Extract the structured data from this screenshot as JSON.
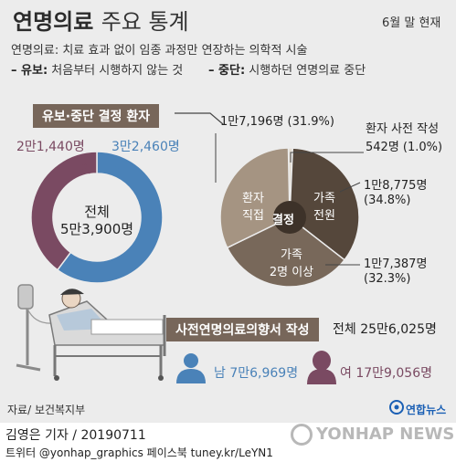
{
  "title_main": "연명의료",
  "title_sub": "주요 통계",
  "date_note": "6월 말 현재",
  "definition": {
    "line1": "연명의료: 치료 효과 없이 임종 과정만 연장하는 의학적 시술",
    "yubo_key": "– 유보:",
    "yubo_text": "처음부터 시행하지 않는 것",
    "jungdan_key": "– 중단:",
    "jungdan_text": "시행하던 연명의료 중단"
  },
  "section1_title": "유보·중단 결정 환자",
  "section2_title": "사전연명의료의향서 작성",
  "chart_data": [
    {
      "type": "pie",
      "title": "유보·중단 결정 환자",
      "center_label": [
        "전체",
        "5만3,900명"
      ],
      "slices": [
        {
          "name": "남",
          "value": 32460,
          "label": "3만2,460명",
          "color": "#4a82b8"
        },
        {
          "name": "여",
          "value": 21440,
          "label": "2만1,440명",
          "color": "#7a4a62"
        }
      ],
      "total": 53900
    },
    {
      "type": "pie",
      "title": "결정",
      "slices": [
        {
          "name": "환자 사전 작성",
          "value": 542,
          "label": "542명",
          "pct_label": "(1.0%)",
          "color": "#e4ddd2"
        },
        {
          "name": "가족 전원",
          "value": 18775,
          "label": "1만8,775명",
          "pct_label": "(34.8%)",
          "color": "#55473b"
        },
        {
          "name": "가족 2명 이상",
          "value": 17387,
          "label": "1만7,387명",
          "pct_label": "(32.3%)",
          "color": "#78685a"
        },
        {
          "name": "환자 직접",
          "value": 17196,
          "label": "1만7,196명",
          "pct_label": "(31.9%)",
          "color": "#a59482"
        }
      ]
    },
    {
      "type": "bar",
      "title": "사전연명의료의향서 작성",
      "total_label": "전체 25만6,025명",
      "categories": [
        "남",
        "여"
      ],
      "values": [
        76969,
        179056
      ],
      "value_labels": [
        "7만6,969명",
        "17만9,056명"
      ],
      "colors": [
        "#4a82b8",
        "#7a4a62"
      ]
    }
  ],
  "donut_labels": {
    "left_value": "2만1,440명",
    "right_value": "3만2,460명",
    "left_name": "여",
    "right_name": "남"
  },
  "pie_labels": {
    "top": "1만7,196명 (31.9%)",
    "patient_pre_title": "환자 사전 작성",
    "patient_pre_value": "542명 (1.0%)",
    "family_all_value": "1만8,775명",
    "family_all_pct": "(34.8%)",
    "family_two_value": "1만7,387명",
    "family_two_pct": "(32.3%)",
    "center": "결정",
    "slice_patient": [
      "환자",
      "직접"
    ],
    "slice_family_all": [
      "가족",
      "전원"
    ],
    "slice_family_two": [
      "가족",
      "2명 이상"
    ]
  },
  "total_writers": "전체 25만6,025명",
  "men_writers": "남 7만6,969명",
  "women_writers": "여 17만9,056명",
  "source": "자료/ 보건복지부",
  "logo_small": "연합뉴스",
  "watermark": "YONHAP NEWS",
  "byline": "김영은 기자 / 20190711",
  "twitter": "트위터 @yonhap_graphics  페이스북 tuney.kr/LeYN1"
}
